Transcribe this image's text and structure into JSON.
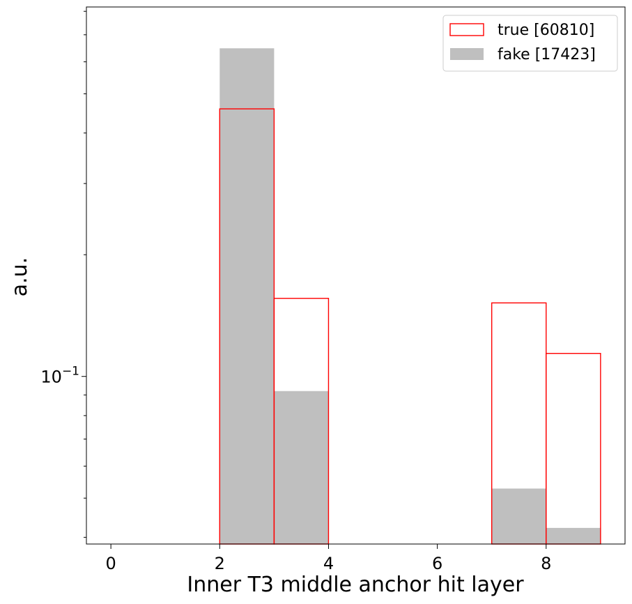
{
  "chart_data": {
    "type": "histogram",
    "xlabel": "Inner T3 middle anchor hit layer",
    "ylabel": "a.u.",
    "xscale": "linear",
    "yscale": "log",
    "xlim": [
      -0.45,
      9.45
    ],
    "ylim": [
      0.0385,
      0.82
    ],
    "x_ticks": [
      0,
      2,
      4,
      6,
      8
    ],
    "y_ticks": [
      {
        "value": 0.1,
        "base": "10",
        "exponent": "−1"
      }
    ],
    "y_minor_ticks": [
      0.04,
      0.05,
      0.06,
      0.07,
      0.08,
      0.09,
      0.2,
      0.3,
      0.4,
      0.5,
      0.6,
      0.7,
      0.8
    ],
    "grid": false,
    "legend_placement": "top-right",
    "series": [
      {
        "name": "true [60810]",
        "style": "step",
        "color": "#ff0000",
        "bins": [
          {
            "x0": 2,
            "x1": 3,
            "value": 0.459
          },
          {
            "x0": 3,
            "x1": 4,
            "value": 0.156
          },
          {
            "x0": 7,
            "x1": 8,
            "value": 0.152
          },
          {
            "x0": 8,
            "x1": 9,
            "value": 0.114
          }
        ]
      },
      {
        "name": "fake [17423]",
        "style": "filled",
        "color": "#bfbfbf",
        "bins": [
          {
            "x0": 2,
            "x1": 3,
            "value": 0.648
          },
          {
            "x0": 3,
            "x1": 4,
            "value": 0.092
          },
          {
            "x0": 7,
            "x1": 8,
            "value": 0.0528
          },
          {
            "x0": 8,
            "x1": 9,
            "value": 0.0422
          }
        ]
      }
    ]
  }
}
